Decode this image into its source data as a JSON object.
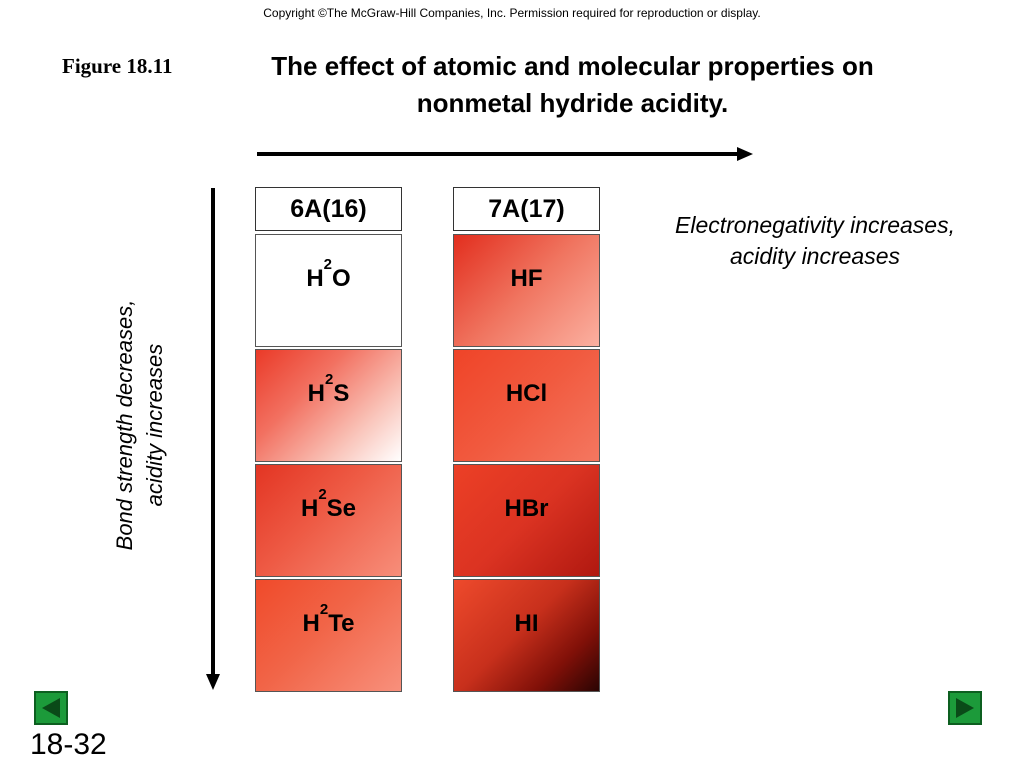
{
  "copyright": "Copyright ©The McGraw-Hill Companies, Inc.  Permission required for reproduction or display.",
  "figure_label": "Figure 18.11",
  "title_line1": "The effect of atomic and molecular properties on",
  "title_line2": "nonmetal hydride acidity.",
  "side_label_line1": "Bond strength decreases,",
  "side_label_line2": "acidity increases",
  "right_label_line1": "Electronegativity increases,",
  "right_label_line2": "acidity increases",
  "columns": [
    {
      "header": "6A(16)",
      "cells": [
        {
          "base": "H",
          "sub": "2",
          "rest": "O"
        },
        {
          "base": "H",
          "sub": "2",
          "rest": "S"
        },
        {
          "base": "H",
          "sub": "2",
          "rest": "Se"
        },
        {
          "base": "H",
          "sub": "2",
          "rest": "Te"
        }
      ]
    },
    {
      "header": "7A(17)",
      "cells": [
        {
          "label": "HF"
        },
        {
          "label": "HCl"
        },
        {
          "label": "HBr"
        },
        {
          "label": "HI"
        }
      ]
    }
  ],
  "colors": {
    "accent_red": "#e8402a",
    "nav_green": "#1c9a3a"
  },
  "nav": {
    "prev_icon": "triangle-left-icon",
    "next_icon": "triangle-right-icon"
  },
  "slide_number": "18-32"
}
